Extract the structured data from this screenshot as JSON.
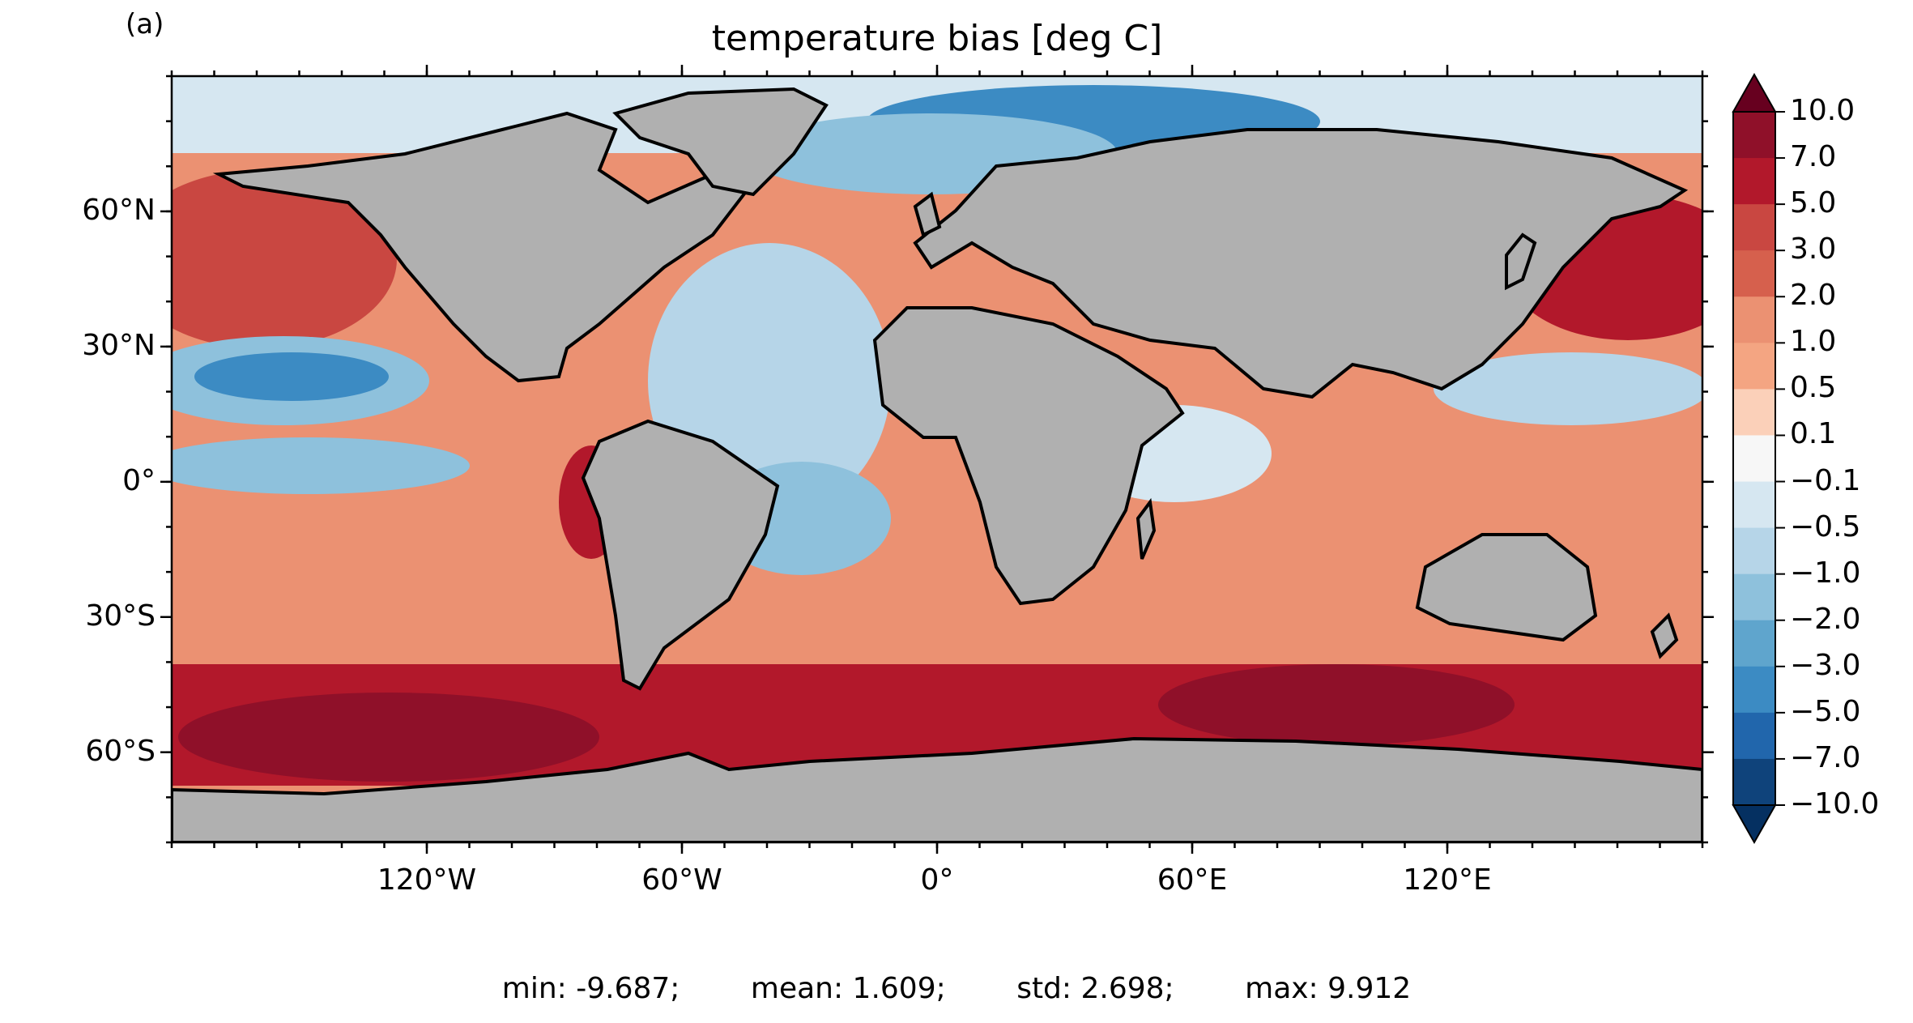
{
  "panel_label": "(a)",
  "title": "temperature bias [deg C]",
  "axes": {
    "y_ticks": [
      {
        "value": 60,
        "label": "60°N"
      },
      {
        "value": 30,
        "label": "30°N"
      },
      {
        "value": 0,
        "label": "0°"
      },
      {
        "value": -30,
        "label": "30°S"
      },
      {
        "value": -60,
        "label": "60°S"
      }
    ],
    "x_ticks": [
      {
        "value": -120,
        "label": "120°W"
      },
      {
        "value": -60,
        "label": "60°W"
      },
      {
        "value": 0,
        "label": "0°"
      },
      {
        "value": 60,
        "label": "60°E"
      },
      {
        "value": 120,
        "label": "120°E"
      }
    ],
    "lon_range": [
      -180,
      180
    ],
    "lat_range": [
      -80,
      90
    ]
  },
  "colorbar": {
    "levels": [
      "10.0",
      "7.0",
      "5.0",
      "3.0",
      "2.0",
      "1.0",
      "0.5",
      "0.1",
      "−0.1",
      "−0.5",
      "−1.0",
      "−2.0",
      "−3.0",
      "−5.0",
      "−7.0",
      "−10.0"
    ],
    "colors": [
      "#67001f",
      "#8f1029",
      "#b2182b",
      "#c94741",
      "#d6604d",
      "#eb9172",
      "#f4a582",
      "#fbd0b9",
      "#f7f7f7",
      "#d6e7f1",
      "#b6d5e8",
      "#8ec1dc",
      "#5fa5cd",
      "#3c8bc3",
      "#2166ac",
      "#0f437b",
      "#053061"
    ],
    "extend": "both"
  },
  "land_color": "#b0b0b0",
  "stats": {
    "min": "min: -9.687;",
    "mean": "mean: 1.609;",
    "std": "std: 2.698;",
    "max": "max: 9.912"
  }
}
